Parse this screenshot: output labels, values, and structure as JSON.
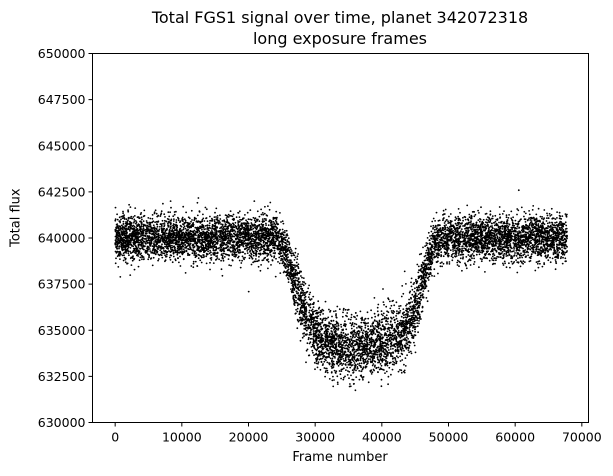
{
  "chart_data": {
    "type": "scatter",
    "title_line1": "Total FGS1 signal over time, planet 342072318",
    "title_line2": "long exposure frames",
    "xlabel": "Frame number",
    "ylabel": "Total flux",
    "xlim": [
      -3400,
      71000
    ],
    "ylim": [
      630000,
      650000
    ],
    "xticks": [
      0,
      10000,
      20000,
      30000,
      40000,
      50000,
      60000,
      70000
    ],
    "yticks": [
      630000,
      632500,
      635000,
      637500,
      640000,
      642500,
      645000,
      647500,
      650000
    ],
    "marker_color": "#000000",
    "grid": false,
    "series": [
      {
        "x": [
          0,
          5000,
          10000,
          15000,
          20000,
          24000,
          25500,
          27000,
          28500,
          30000,
          32000,
          34000,
          36000,
          38000,
          40000,
          42000,
          44000,
          45000,
          46500,
          48000,
          50000,
          55000,
          60000,
          65000,
          67800
        ],
        "y": [
          640000,
          640000,
          640000,
          640000,
          640000,
          640000,
          639300,
          637500,
          635800,
          634800,
          634300,
          634100,
          634000,
          634100,
          634300,
          634600,
          635300,
          636200,
          638200,
          639800,
          640000,
          640000,
          640000,
          640000,
          640000
        ],
        "scatter_band": 1100
      }
    ]
  }
}
